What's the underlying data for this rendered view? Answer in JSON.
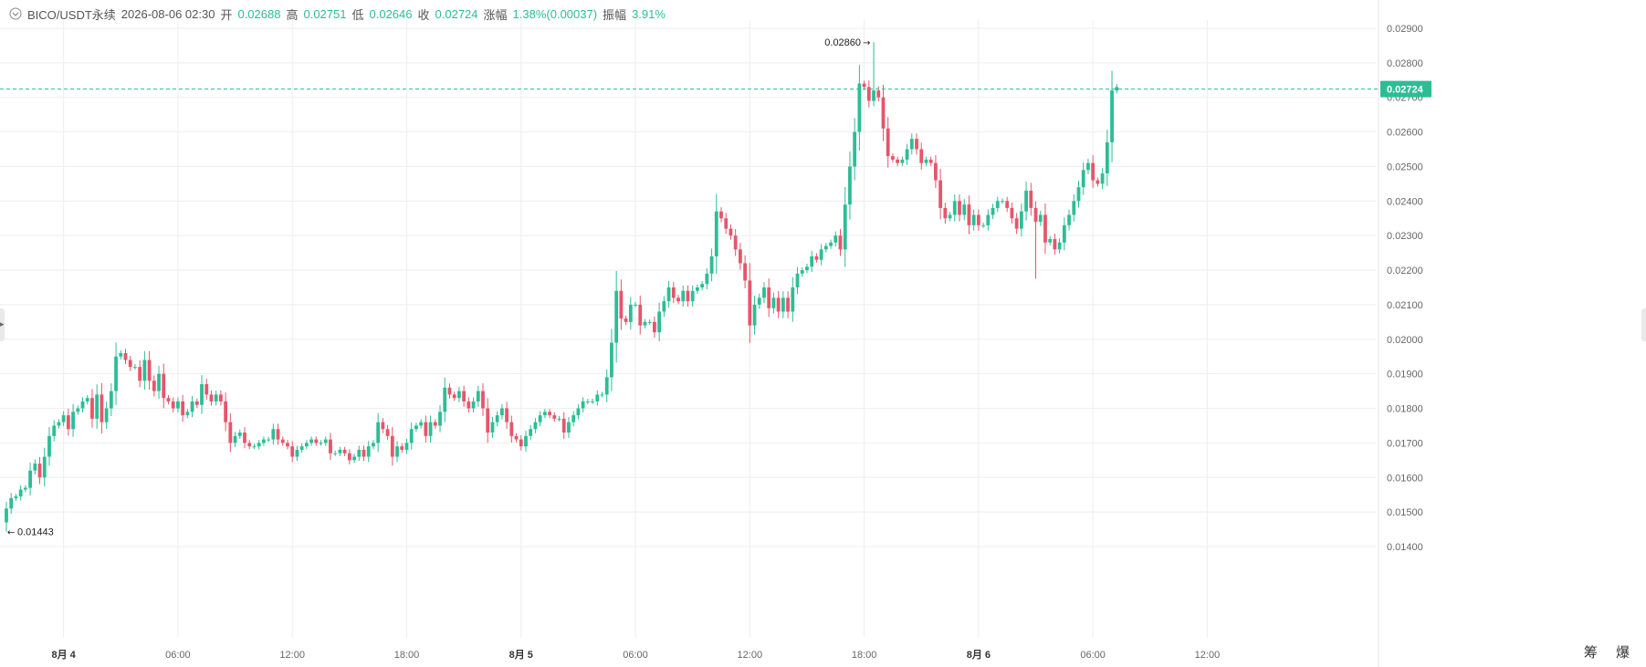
{
  "header": {
    "symbol": "BICO/USDT永续",
    "datetime": "2026-08-06 02:30",
    "open_label": "开",
    "open_value": "0.02688",
    "high_label": "高",
    "high_value": "0.02751",
    "low_label": "低",
    "low_value": "0.02646",
    "close_label": "收",
    "close_value": "0.02724",
    "change_label": "涨幅",
    "change_value": "1.38%(0.00037)",
    "amplitude_label": "振幅",
    "amplitude_value": "3.91%"
  },
  "corner_text": "筹 爆",
  "colors": {
    "up": "#2dbd96",
    "down": "#e5566b",
    "grid": "#eeeeee",
    "axis_text": "#666666"
  },
  "chart_data": {
    "type": "candlestick",
    "symbol": "BICO/USDT永续",
    "y_ticks": [
      "0.02900",
      "0.02800",
      "0.02700",
      "0.02600",
      "0.02500",
      "0.02400",
      "0.02300",
      "0.02200",
      "0.02100",
      "0.02000",
      "0.01900",
      "0.01800",
      "0.01700",
      "0.01600",
      "0.01500",
      "0.01400"
    ],
    "ylim": [
      0.0136,
      0.0292
    ],
    "x_ticks": [
      {
        "label": "8月 4",
        "bold": true,
        "t": 12
      },
      {
        "label": "06:00",
        "t": 36
      },
      {
        "label": "12:00",
        "t": 60
      },
      {
        "label": "18:00",
        "t": 84
      },
      {
        "label": "8月 5",
        "bold": true,
        "t": 108
      },
      {
        "label": "06:00",
        "t": 132
      },
      {
        "label": "12:00",
        "t": 156
      },
      {
        "label": "18:00",
        "t": 180
      },
      {
        "label": "8月 6",
        "bold": true,
        "t": 204
      },
      {
        "label": "06:00",
        "t": 228
      },
      {
        "label": "12:00",
        "t": 252
      }
    ],
    "current_price": "0.02724",
    "current_value": 0.02724,
    "max_label": "0.02860",
    "max_value": 0.0286,
    "max_index": 182,
    "min_label": "0.01443",
    "min_value": 0.01443,
    "min_index": 0,
    "closes": [
      0.0151,
      0.0154,
      0.01545,
      0.01565,
      0.0157,
      0.0162,
      0.0164,
      0.016,
      0.0166,
      0.0172,
      0.0175,
      0.0176,
      0.0178,
      0.0174,
      0.0179,
      0.018,
      0.0182,
      0.0183,
      0.0177,
      0.0184,
      0.0176,
      0.018,
      0.0185,
      0.0195,
      0.0196,
      0.0194,
      0.0192,
      0.0192,
      0.0188,
      0.0194,
      0.0188,
      0.0185,
      0.019,
      0.0183,
      0.0182,
      0.018,
      0.0182,
      0.0178,
      0.0179,
      0.0182,
      0.0181,
      0.0187,
      0.0184,
      0.0182,
      0.0184,
      0.0182,
      0.0176,
      0.017,
      0.0172,
      0.0173,
      0.017,
      0.0169,
      0.0169,
      0.017,
      0.0171,
      0.0171,
      0.0174,
      0.0171,
      0.017,
      0.0169,
      0.0166,
      0.0168,
      0.0169,
      0.017,
      0.0171,
      0.017,
      0.017,
      0.0171,
      0.0167,
      0.0167,
      0.0168,
      0.0167,
      0.0165,
      0.0166,
      0.0168,
      0.0166,
      0.0169,
      0.017,
      0.0176,
      0.0174,
      0.0172,
      0.0166,
      0.0169,
      0.0168,
      0.017,
      0.0174,
      0.0175,
      0.0176,
      0.0172,
      0.0176,
      0.0175,
      0.0179,
      0.0186,
      0.0184,
      0.0183,
      0.0185,
      0.0182,
      0.018,
      0.0182,
      0.0185,
      0.018,
      0.0173,
      0.0176,
      0.0178,
      0.018,
      0.0176,
      0.0172,
      0.0171,
      0.0169,
      0.0172,
      0.0174,
      0.0176,
      0.0178,
      0.0179,
      0.0178,
      0.0177,
      0.0177,
      0.0173,
      0.0176,
      0.0178,
      0.018,
      0.0182,
      0.0182,
      0.0182,
      0.0184,
      0.0184,
      0.0189,
      0.0199,
      0.0214,
      0.0206,
      0.0205,
      0.021,
      0.021,
      0.0204,
      0.0205,
      0.0205,
      0.0202,
      0.0208,
      0.0211,
      0.0215,
      0.0212,
      0.0211,
      0.0214,
      0.0211,
      0.0214,
      0.0215,
      0.0216,
      0.0219,
      0.0224,
      0.0237,
      0.0235,
      0.0232,
      0.023,
      0.0226,
      0.0222,
      0.0217,
      0.0204,
      0.021,
      0.0212,
      0.0215,
      0.0209,
      0.0212,
      0.0208,
      0.0212,
      0.0208,
      0.0215,
      0.0219,
      0.022,
      0.0221,
      0.0224,
      0.0223,
      0.0226,
      0.0227,
      0.0228,
      0.023,
      0.0226,
      0.0239,
      0.025,
      0.026,
      0.0274,
      0.0273,
      0.0269,
      0.0272,
      0.027,
      0.0261,
      0.0253,
      0.0252,
      0.0251,
      0.0252,
      0.0255,
      0.0258,
      0.0255,
      0.0251,
      0.0252,
      0.0251,
      0.0246,
      0.0238,
      0.0235,
      0.0236,
      0.024,
      0.0236,
      0.0239,
      0.0233,
      0.0236,
      0.0233,
      0.0233,
      0.0236,
      0.0238,
      0.024,
      0.024,
      0.0238,
      0.0235,
      0.0232,
      0.0237,
      0.0243,
      0.0238,
      0.0234,
      0.0236,
      0.0228,
      0.0229,
      0.0226,
      0.0228,
      0.0233,
      0.0236,
      0.024,
      0.0244,
      0.0249,
      0.0251,
      0.0246,
      0.0245,
      0.0248,
      0.0257,
      0.0272,
      0.0273
    ]
  }
}
